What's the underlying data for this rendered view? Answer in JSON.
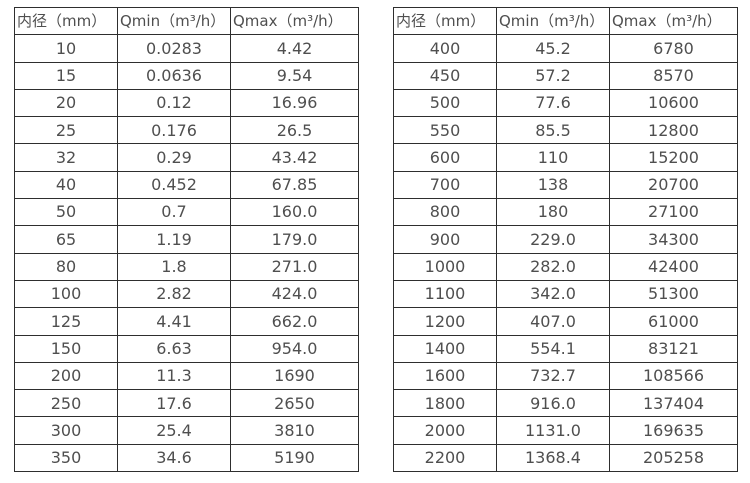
{
  "style": {
    "background": "#ffffff",
    "border_color": "#2e2e2e",
    "text_color": "#4f4f4f"
  },
  "tables": [
    {
      "name": "small-diameter-flow-table",
      "headers": [
        "内径（mm）",
        "Qmin（m³/h）",
        "Qmax（m³/h）"
      ],
      "rows": [
        [
          "10",
          "0.0283",
          "4.42"
        ],
        [
          "15",
          "0.0636",
          "9.54"
        ],
        [
          "20",
          "0.12",
          "16.96"
        ],
        [
          "25",
          "0.176",
          "26.5"
        ],
        [
          "32",
          "0.29",
          "43.42"
        ],
        [
          "40",
          "0.452",
          "67.85"
        ],
        [
          "50",
          "0.7",
          "160.0"
        ],
        [
          "65",
          "1.19",
          "179.0"
        ],
        [
          "80",
          "1.8",
          "271.0"
        ],
        [
          "100",
          "2.82",
          "424.0"
        ],
        [
          "125",
          "4.41",
          "662.0"
        ],
        [
          "150",
          "6.63",
          "954.0"
        ],
        [
          "200",
          "11.3",
          "1690"
        ],
        [
          "250",
          "17.6",
          "2650"
        ],
        [
          "300",
          "25.4",
          "3810"
        ],
        [
          "350",
          "34.6",
          "5190"
        ]
      ]
    },
    {
      "name": "large-diameter-flow-table",
      "headers": [
        "内径（mm）",
        "Qmin（m³/h）",
        "Qmax（m³/h）"
      ],
      "rows": [
        [
          "400",
          "45.2",
          "6780"
        ],
        [
          "450",
          "57.2",
          "8570"
        ],
        [
          "500",
          "77.6",
          "10600"
        ],
        [
          "550",
          "85.5",
          "12800"
        ],
        [
          "600",
          "110",
          "15200"
        ],
        [
          "700",
          "138",
          "20700"
        ],
        [
          "800",
          "180",
          "27100"
        ],
        [
          "900",
          "229.0",
          "34300"
        ],
        [
          "1000",
          "282.0",
          "42400"
        ],
        [
          "1100",
          "342.0",
          "51300"
        ],
        [
          "1200",
          "407.0",
          "61000"
        ],
        [
          "1400",
          "554.1",
          "83121"
        ],
        [
          "1600",
          "732.7",
          "108566"
        ],
        [
          "1800",
          "916.0",
          "137404"
        ],
        [
          "2000",
          "1131.0",
          "169635"
        ],
        [
          "2200",
          "1368.4",
          "205258"
        ]
      ]
    }
  ]
}
